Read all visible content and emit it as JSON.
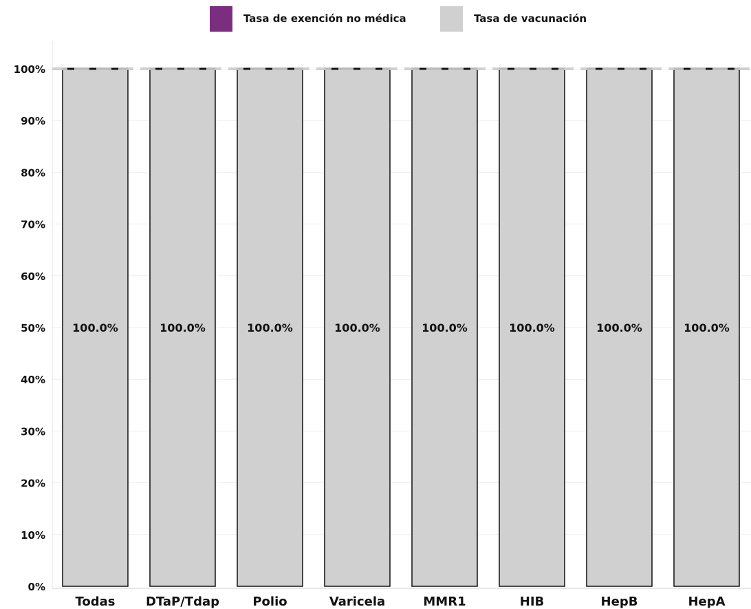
{
  "legend": {
    "items": [
      {
        "label": "Tasa de exención no médica",
        "color": "#7b2d7f"
      },
      {
        "label": "Tasa de vacunación",
        "color": "#d0d0d0"
      }
    ]
  },
  "chart_data": {
    "type": "bar",
    "stacked": true,
    "categories": [
      "Todas",
      "DTaP/Tdap",
      "Polio",
      "Varicela",
      "MMR1",
      "HIB",
      "HepB",
      "HepA"
    ],
    "series": [
      {
        "name": "Tasa de exención no médica",
        "values": [
          0,
          0,
          0,
          0,
          0,
          0,
          0,
          0
        ],
        "color": "#7b2d7f"
      },
      {
        "name": "Tasa de vacunación",
        "values": [
          100,
          100,
          100,
          100,
          100,
          100,
          100,
          100
        ],
        "color": "#d0d0d0"
      }
    ],
    "data_labels": [
      "100.0%",
      "100.0%",
      "100.0%",
      "100.0%",
      "100.0%",
      "100.0%",
      "100.0%",
      "100.0%"
    ],
    "y_ticks": [
      "0%",
      "10%",
      "20%",
      "30%",
      "40%",
      "50%",
      "60%",
      "70%",
      "80%",
      "90%",
      "100%"
    ],
    "ylim": [
      0,
      100
    ],
    "reference_line": 100,
    "grid": true,
    "legend_position": "top-center"
  }
}
